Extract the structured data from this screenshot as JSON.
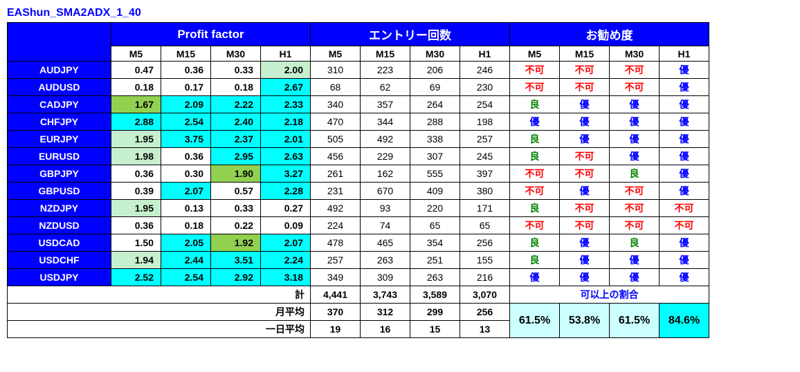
{
  "title": "EAShun_SMA2ADX_1_40",
  "title_color": "#0000ff",
  "colors": {
    "header_bg": "#0000ff",
    "row_label_bg": "#0000ff",
    "pf_cyan": "#00ffff",
    "pf_green": "#92d050",
    "pf_lightgreen": "#c6efce",
    "ratio_lightcyan": "#ccffff",
    "rec_red": "#ff0000",
    "rec_green": "#008000",
    "rec_blue": "#0000ff",
    "ratio_label_color": "#0000ff"
  },
  "group_headers": [
    "Profit factor",
    "エントリー回数",
    "お勧め度"
  ],
  "sub_headers": [
    "M5",
    "M15",
    "M30",
    "H1"
  ],
  "rows": [
    {
      "pair": "AUDJPY",
      "pf": [
        {
          "v": "0.47",
          "bg": ""
        },
        {
          "v": "0.36",
          "bg": ""
        },
        {
          "v": "0.33",
          "bg": ""
        },
        {
          "v": "2.00",
          "bg": "pf_lightgreen"
        }
      ],
      "entry": [
        "310",
        "223",
        "206",
        "246"
      ],
      "rec": [
        {
          "t": "不可",
          "c": "rec_red"
        },
        {
          "t": "不可",
          "c": "rec_red"
        },
        {
          "t": "不可",
          "c": "rec_red"
        },
        {
          "t": "優",
          "c": "rec_blue"
        }
      ]
    },
    {
      "pair": "AUDUSD",
      "pf": [
        {
          "v": "0.18",
          "bg": ""
        },
        {
          "v": "0.17",
          "bg": ""
        },
        {
          "v": "0.18",
          "bg": ""
        },
        {
          "v": "2.67",
          "bg": "pf_cyan"
        }
      ],
      "entry": [
        "68",
        "62",
        "69",
        "230"
      ],
      "rec": [
        {
          "t": "不可",
          "c": "rec_red"
        },
        {
          "t": "不可",
          "c": "rec_red"
        },
        {
          "t": "不可",
          "c": "rec_red"
        },
        {
          "t": "優",
          "c": "rec_blue"
        }
      ]
    },
    {
      "pair": "CADJPY",
      "pf": [
        {
          "v": "1.67",
          "bg": "pf_green"
        },
        {
          "v": "2.09",
          "bg": "pf_cyan"
        },
        {
          "v": "2.22",
          "bg": "pf_cyan"
        },
        {
          "v": "2.33",
          "bg": "pf_cyan"
        }
      ],
      "entry": [
        "340",
        "357",
        "264",
        "254"
      ],
      "rec": [
        {
          "t": "良",
          "c": "rec_green"
        },
        {
          "t": "優",
          "c": "rec_blue"
        },
        {
          "t": "優",
          "c": "rec_blue"
        },
        {
          "t": "優",
          "c": "rec_blue"
        }
      ]
    },
    {
      "pair": "CHFJPY",
      "pf": [
        {
          "v": "2.88",
          "bg": "pf_cyan"
        },
        {
          "v": "2.54",
          "bg": "pf_cyan"
        },
        {
          "v": "2.40",
          "bg": "pf_cyan"
        },
        {
          "v": "2.18",
          "bg": "pf_cyan"
        }
      ],
      "entry": [
        "470",
        "344",
        "288",
        "198"
      ],
      "rec": [
        {
          "t": "優",
          "c": "rec_blue"
        },
        {
          "t": "優",
          "c": "rec_blue"
        },
        {
          "t": "優",
          "c": "rec_blue"
        },
        {
          "t": "優",
          "c": "rec_blue"
        }
      ]
    },
    {
      "pair": "EURJPY",
      "pf": [
        {
          "v": "1.95",
          "bg": "pf_lightgreen"
        },
        {
          "v": "3.75",
          "bg": "pf_cyan"
        },
        {
          "v": "2.37",
          "bg": "pf_cyan"
        },
        {
          "v": "2.01",
          "bg": "pf_cyan"
        }
      ],
      "entry": [
        "505",
        "492",
        "338",
        "257"
      ],
      "rec": [
        {
          "t": "良",
          "c": "rec_green"
        },
        {
          "t": "優",
          "c": "rec_blue"
        },
        {
          "t": "優",
          "c": "rec_blue"
        },
        {
          "t": "優",
          "c": "rec_blue"
        }
      ]
    },
    {
      "pair": "EURUSD",
      "pf": [
        {
          "v": "1.98",
          "bg": "pf_lightgreen"
        },
        {
          "v": "0.36",
          "bg": ""
        },
        {
          "v": "2.95",
          "bg": "pf_cyan"
        },
        {
          "v": "2.63",
          "bg": "pf_cyan"
        }
      ],
      "entry": [
        "456",
        "229",
        "307",
        "245"
      ],
      "rec": [
        {
          "t": "良",
          "c": "rec_green"
        },
        {
          "t": "不可",
          "c": "rec_red"
        },
        {
          "t": "優",
          "c": "rec_blue"
        },
        {
          "t": "優",
          "c": "rec_blue"
        }
      ]
    },
    {
      "pair": "GBPJPY",
      "pf": [
        {
          "v": "0.36",
          "bg": ""
        },
        {
          "v": "0.30",
          "bg": ""
        },
        {
          "v": "1.90",
          "bg": "pf_green"
        },
        {
          "v": "3.27",
          "bg": "pf_cyan"
        }
      ],
      "entry": [
        "261",
        "162",
        "555",
        "397"
      ],
      "rec": [
        {
          "t": "不可",
          "c": "rec_red"
        },
        {
          "t": "不可",
          "c": "rec_red"
        },
        {
          "t": "良",
          "c": "rec_green"
        },
        {
          "t": "優",
          "c": "rec_blue"
        }
      ]
    },
    {
      "pair": "GBPUSD",
      "pf": [
        {
          "v": "0.39",
          "bg": ""
        },
        {
          "v": "2.07",
          "bg": "pf_cyan"
        },
        {
          "v": "0.57",
          "bg": ""
        },
        {
          "v": "2.28",
          "bg": "pf_cyan"
        }
      ],
      "entry": [
        "231",
        "670",
        "409",
        "380"
      ],
      "rec": [
        {
          "t": "不可",
          "c": "rec_red"
        },
        {
          "t": "優",
          "c": "rec_blue"
        },
        {
          "t": "不可",
          "c": "rec_red"
        },
        {
          "t": "優",
          "c": "rec_blue"
        }
      ]
    },
    {
      "pair": "NZDJPY",
      "pf": [
        {
          "v": "1.95",
          "bg": "pf_lightgreen"
        },
        {
          "v": "0.13",
          "bg": ""
        },
        {
          "v": "0.33",
          "bg": ""
        },
        {
          "v": "0.27",
          "bg": ""
        }
      ],
      "entry": [
        "492",
        "93",
        "220",
        "171"
      ],
      "rec": [
        {
          "t": "良",
          "c": "rec_green"
        },
        {
          "t": "不可",
          "c": "rec_red"
        },
        {
          "t": "不可",
          "c": "rec_red"
        },
        {
          "t": "不可",
          "c": "rec_red"
        }
      ]
    },
    {
      "pair": "NZDUSD",
      "pf": [
        {
          "v": "0.36",
          "bg": ""
        },
        {
          "v": "0.18",
          "bg": ""
        },
        {
          "v": "0.22",
          "bg": ""
        },
        {
          "v": "0.09",
          "bg": ""
        }
      ],
      "entry": [
        "224",
        "74",
        "65",
        "65"
      ],
      "rec": [
        {
          "t": "不可",
          "c": "rec_red"
        },
        {
          "t": "不可",
          "c": "rec_red"
        },
        {
          "t": "不可",
          "c": "rec_red"
        },
        {
          "t": "不可",
          "c": "rec_red"
        }
      ]
    },
    {
      "pair": "USDCAD",
      "pf": [
        {
          "v": "1.50",
          "bg": ""
        },
        {
          "v": "2.05",
          "bg": "pf_cyan"
        },
        {
          "v": "1.92",
          "bg": "pf_green"
        },
        {
          "v": "2.07",
          "bg": "pf_cyan"
        }
      ],
      "entry": [
        "478",
        "465",
        "354",
        "256"
      ],
      "rec": [
        {
          "t": "良",
          "c": "rec_green"
        },
        {
          "t": "優",
          "c": "rec_blue"
        },
        {
          "t": "良",
          "c": "rec_green"
        },
        {
          "t": "優",
          "c": "rec_blue"
        }
      ]
    },
    {
      "pair": "USDCHF",
      "pf": [
        {
          "v": "1.94",
          "bg": "pf_lightgreen"
        },
        {
          "v": "2.44",
          "bg": "pf_cyan"
        },
        {
          "v": "3.51",
          "bg": "pf_cyan"
        },
        {
          "v": "2.24",
          "bg": "pf_cyan"
        }
      ],
      "entry": [
        "257",
        "263",
        "251",
        "155"
      ],
      "rec": [
        {
          "t": "良",
          "c": "rec_green"
        },
        {
          "t": "優",
          "c": "rec_blue"
        },
        {
          "t": "優",
          "c": "rec_blue"
        },
        {
          "t": "優",
          "c": "rec_blue"
        }
      ]
    },
    {
      "pair": "USDJPY",
      "pf": [
        {
          "v": "2.52",
          "bg": "pf_cyan"
        },
        {
          "v": "2.54",
          "bg": "pf_cyan"
        },
        {
          "v": "2.92",
          "bg": "pf_cyan"
        },
        {
          "v": "3.18",
          "bg": "pf_cyan"
        }
      ],
      "entry": [
        "349",
        "309",
        "263",
        "216"
      ],
      "rec": [
        {
          "t": "優",
          "c": "rec_blue"
        },
        {
          "t": "優",
          "c": "rec_blue"
        },
        {
          "t": "優",
          "c": "rec_blue"
        },
        {
          "t": "優",
          "c": "rec_blue"
        }
      ]
    }
  ],
  "summary": {
    "total_label": "計",
    "total": [
      "4,441",
      "3,743",
      "3,589",
      "3,070"
    ],
    "month_label": "月平均",
    "month": [
      "370",
      "312",
      "299",
      "256"
    ],
    "day_label": "一日平均",
    "day": [
      "19",
      "16",
      "15",
      "13"
    ],
    "ratio_label": "可以上の割合",
    "ratio": [
      {
        "v": "61.5%",
        "bg": "ratio_lightcyan"
      },
      {
        "v": "53.8%",
        "bg": "ratio_lightcyan"
      },
      {
        "v": "61.5%",
        "bg": "ratio_lightcyan"
      },
      {
        "v": "84.6%",
        "bg": "pf_cyan"
      }
    ]
  }
}
